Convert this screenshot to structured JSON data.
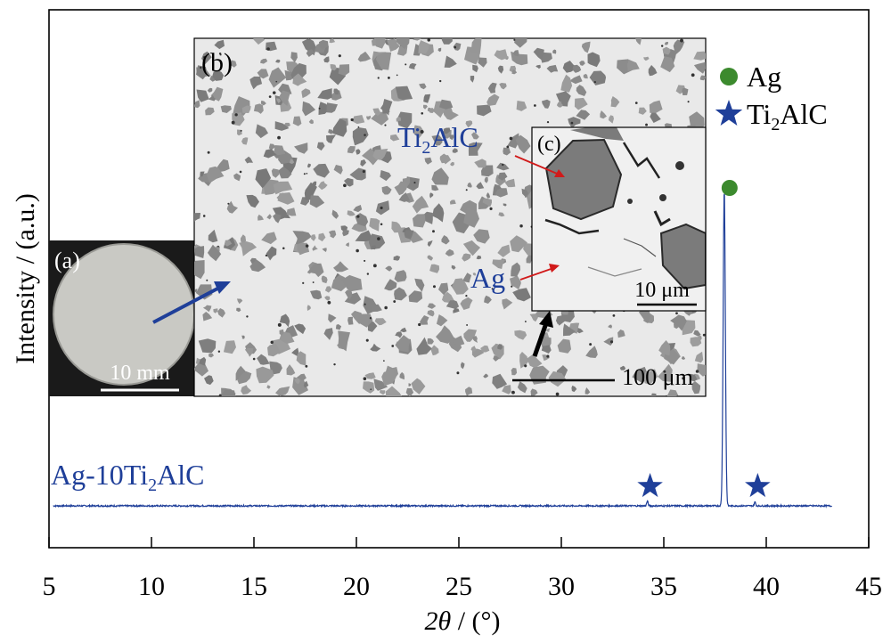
{
  "chart_data": {
    "type": "line",
    "xlabel": "2θ / (°)",
    "ylabel": "Intensity / (a.u.)",
    "xlim": [
      5,
      45
    ],
    "xticks": [
      5,
      10,
      15,
      20,
      25,
      30,
      35,
      40,
      45
    ],
    "y_ticks_shown": false,
    "grid": false,
    "legend_position": "top-right",
    "legend": [
      {
        "label_main": "Ag",
        "label_sub": "",
        "label_tail": "",
        "marker": "circle",
        "color": "#3c8a2e"
      },
      {
        "label_main": "Ti",
        "label_sub": "2",
        "label_tail": "AlC",
        "marker": "star",
        "color": "#1f3f99"
      }
    ],
    "series": [
      {
        "label_main": "Ag-10Ti",
        "label_sub": "2",
        "label_tail": "AlC",
        "color": "#1f3f99",
        "baseline": 0,
        "peaks": [
          {
            "x": 34.2,
            "y": 5,
            "phase": "Ti2AlC"
          },
          {
            "x": 37.95,
            "y": 340,
            "phase": "Ag"
          },
          {
            "x": 39.45,
            "y": 4,
            "phase": "Ti2AlC"
          }
        ]
      }
    ],
    "peak_markers": [
      {
        "x": 34.2,
        "phase": "Ti2AlC",
        "marker": "star"
      },
      {
        "x": 37.95,
        "phase": "Ag",
        "marker": "circle"
      },
      {
        "x": 39.45,
        "phase": "Ti2AlC",
        "marker": "star"
      }
    ],
    "x_range_data": [
      5.2,
      43.2
    ],
    "insets": {
      "a": {
        "label": "(a)",
        "scale_bar": "10 mm"
      },
      "b": {
        "label": "(b)",
        "scale_bar": "100 μm"
      },
      "c": {
        "label": "(c)",
        "scale_bar": "10 μm",
        "annotations": [
          {
            "text_main": "Ti",
            "text_sub": "2",
            "text_tail": "AlC"
          },
          {
            "text_main": "Ag",
            "text_sub": "",
            "text_tail": ""
          }
        ]
      }
    }
  }
}
